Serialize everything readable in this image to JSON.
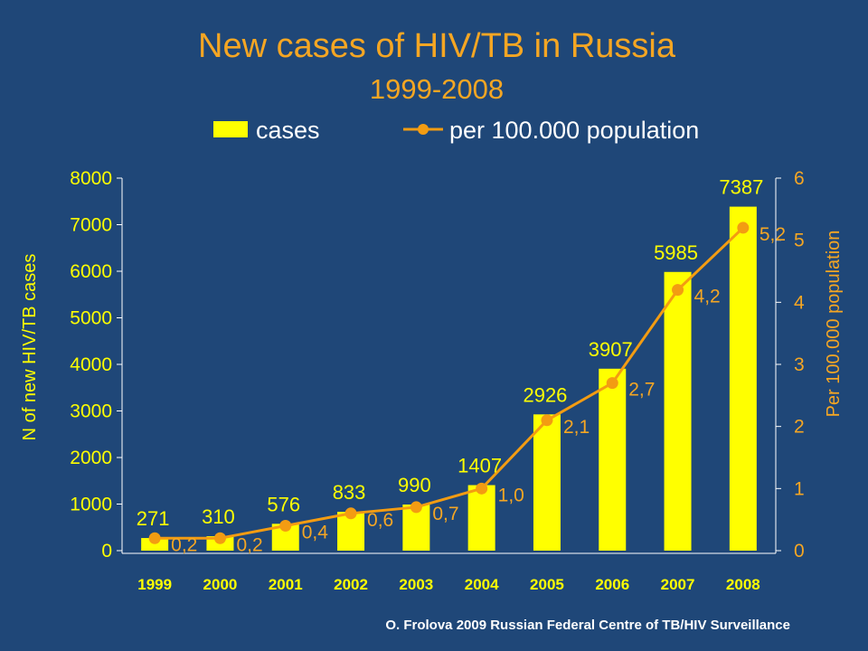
{
  "chart_data": {
    "type": "bar",
    "title": "New cases of HIV/TB in Russia",
    "subtitle": "1999-2008",
    "categories": [
      "1999",
      "2000",
      "2001",
      "2002",
      "2003",
      "2004",
      "2005",
      "2006",
      "2007",
      "2008"
    ],
    "series": [
      {
        "name": "cases",
        "type": "bar",
        "axis": "left",
        "values": [
          271,
          310,
          576,
          833,
          990,
          1407,
          2926,
          3907,
          5985,
          7387
        ],
        "labels": [
          "271",
          "310",
          "576",
          "833",
          "990",
          "1407",
          "2926",
          "3907",
          "5985",
          "7387"
        ],
        "color": "#ffff00"
      },
      {
        "name": "per 100.000 population",
        "type": "line",
        "axis": "right",
        "values": [
          0.2,
          0.2,
          0.4,
          0.6,
          0.7,
          1.0,
          2.1,
          2.7,
          4.2,
          5.2
        ],
        "labels": [
          "0,2",
          "0,2",
          "0,4",
          "0,6",
          "0,7",
          "1,0",
          "2,1",
          "2,7",
          "4,2",
          "5,2"
        ],
        "color": "#f39c12"
      }
    ],
    "ylabel": "N of new HIV/TB cases",
    "y2label": "Per 100.000 population",
    "ylim": [
      0,
      8000
    ],
    "y2lim": [
      0,
      6
    ],
    "yticks": [
      "0",
      "1000",
      "2000",
      "3000",
      "4000",
      "5000",
      "6000",
      "7000",
      "8000"
    ],
    "y2ticks": [
      "0",
      "1",
      "2",
      "3",
      "4",
      "5",
      "6"
    ],
    "legend_position": "top",
    "grid": false
  },
  "source_note": "O. Frolova 2009 Russian Federal Centre of TB/HIV Surveillance",
  "colors": {
    "background": "#1f4778",
    "bar": "#ffff00",
    "line": "#f39c12",
    "title": "#f5a623"
  }
}
